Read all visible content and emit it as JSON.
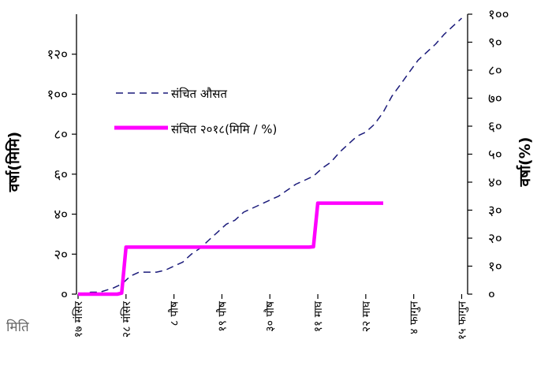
{
  "chart_data": {
    "type": "line",
    "title": "",
    "xlabel": "मिति",
    "ylabel_left": "वर्षा(मिमि)",
    "ylabel_right": "वर्षा(%)",
    "ylim_left": [
      0,
      140
    ],
    "ylim_right": [
      0,
      100
    ],
    "yticks_left": [
      {
        "value": 0,
        "label": "०"
      },
      {
        "value": 20,
        "label": "२०"
      },
      {
        "value": 40,
        "label": "४०"
      },
      {
        "value": 60,
        "label": "६०"
      },
      {
        "value": 80,
        "label": "८०"
      },
      {
        "value": 100,
        "label": "१००"
      },
      {
        "value": 120,
        "label": "१२०"
      }
    ],
    "yticks_right": [
      {
        "value": 0,
        "label": "०"
      },
      {
        "value": 10,
        "label": "१०"
      },
      {
        "value": 20,
        "label": "२०"
      },
      {
        "value": 30,
        "label": "३०"
      },
      {
        "value": 40,
        "label": "४०"
      },
      {
        "value": 50,
        "label": "५०"
      },
      {
        "value": 60,
        "label": "६०"
      },
      {
        "value": 70,
        "label": "७०"
      },
      {
        "value": 80,
        "label": "८०"
      },
      {
        "value": 90,
        "label": "९०"
      },
      {
        "value": 100,
        "label": "१००"
      }
    ],
    "xticks": [
      {
        "day": 0,
        "label": "१७ मंसिर"
      },
      {
        "day": 11,
        "label": "२८ मंसिर"
      },
      {
        "day": 22,
        "label": "८ पौष"
      },
      {
        "day": 33,
        "label": "१९ पौष"
      },
      {
        "day": 44,
        "label": "३० पौष"
      },
      {
        "day": 55,
        "label": "११ माघ"
      },
      {
        "day": 66,
        "label": "२२ माघ"
      },
      {
        "day": 77,
        "label": "४ फागुन"
      },
      {
        "day": 88,
        "label": "१५ फागुन"
      }
    ],
    "x_range": [
      0,
      89
    ],
    "series": [
      {
        "name": "संचित औसत",
        "axis": "left",
        "style": "dashed",
        "color": "#1a1a7a",
        "x": [
          0,
          3,
          5,
          8,
          10,
          11,
          12,
          14,
          16,
          18,
          20,
          22,
          24,
          26,
          28,
          30,
          32,
          34,
          36,
          38,
          40,
          42,
          44,
          46,
          48,
          50,
          52,
          54,
          56,
          58,
          60,
          62,
          64,
          66,
          68,
          70,
          72,
          74,
          76,
          78,
          80,
          82,
          84,
          86,
          88
        ],
        "y": [
          0,
          1,
          1,
          3,
          5,
          7,
          9,
          11,
          11,
          11,
          12,
          14,
          16,
          20,
          23,
          27,
          31,
          35,
          37,
          41,
          43,
          45,
          47,
          49,
          52,
          55,
          57,
          59,
          63,
          66,
          71,
          75,
          79,
          81,
          85,
          91,
          99,
          105,
          111,
          117,
          121,
          125,
          130,
          134,
          138
        ]
      },
      {
        "name": "संचित २०१८(मिमि / %)",
        "axis": "left",
        "style": "solid",
        "color": "#ff00ff",
        "x": [
          0,
          9,
          10,
          11,
          20,
          30,
          40,
          50,
          53,
          54,
          55,
          60,
          65,
          70
        ],
        "y": [
          0,
          0,
          0.5,
          23.5,
          23.5,
          23.5,
          23.5,
          23.5,
          23.5,
          23.7,
          45.5,
          45.5,
          45.5,
          45.5
        ]
      }
    ],
    "legend": "upper-left-inside"
  }
}
